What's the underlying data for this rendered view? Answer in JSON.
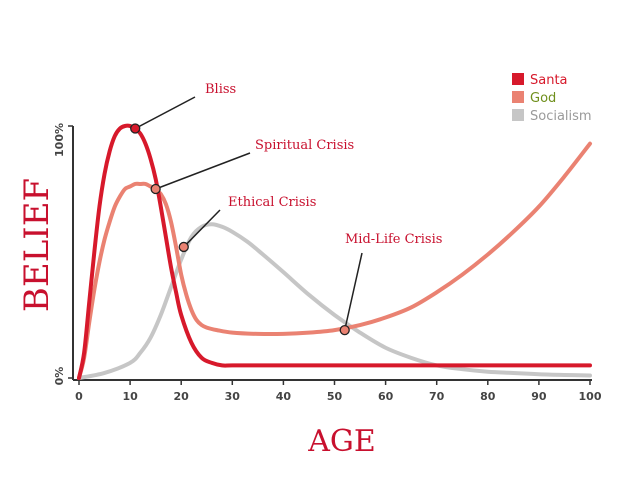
{
  "chart_data": {
    "type": "line",
    "title": "",
    "xlabel": "AGE",
    "ylabel": "BELIEF",
    "xlim": [
      0,
      100
    ],
    "ylim": [
      0,
      100
    ],
    "x_ticks": [
      0,
      10,
      20,
      30,
      40,
      50,
      60,
      70,
      80,
      90,
      100
    ],
    "y_ticks": [
      {
        "value": 0,
        "label": "0%"
      },
      {
        "value": 100,
        "label": "100%"
      }
    ],
    "legend_position": "top-right",
    "series": [
      {
        "name": "Santa",
        "color": "#d7192b",
        "x": [
          0,
          1,
          2,
          3,
          4,
          5,
          6,
          7,
          8,
          9,
          10,
          11,
          12,
          13,
          14,
          15,
          16,
          17,
          18,
          19,
          20,
          22,
          24,
          26,
          28,
          30,
          35,
          40,
          50,
          60,
          70,
          80,
          90,
          100
        ],
        "y": [
          0,
          10,
          30,
          50,
          68,
          81,
          90,
          96,
          99,
          100,
          100,
          99,
          97,
          93,
          87,
          79,
          68,
          56,
          44,
          34,
          25,
          14,
          8,
          6,
          5,
          5,
          5,
          5,
          5,
          5,
          5,
          5,
          5,
          5
        ]
      },
      {
        "name": "God",
        "color": "#ea8272",
        "x": [
          0,
          1,
          2,
          3,
          4,
          5,
          6,
          7,
          8,
          9,
          10,
          11,
          12,
          13,
          14,
          15,
          16,
          17,
          18,
          19,
          20,
          21,
          22,
          23,
          24,
          25,
          27,
          30,
          35,
          40,
          45,
          50,
          55,
          60,
          65,
          70,
          75,
          80,
          85,
          90,
          95,
          100
        ],
        "y": [
          0,
          8,
          22,
          35,
          46,
          55,
          62,
          68,
          72,
          75,
          76,
          77,
          77,
          77,
          76,
          75,
          73,
          69,
          62,
          52,
          41,
          33,
          27,
          23,
          21,
          20,
          19,
          18,
          17.5,
          17.5,
          18,
          19,
          21,
          24,
          28,
          34,
          41,
          49,
          58,
          68,
          80,
          93
        ]
      },
      {
        "name": "Socialism",
        "color": "#c6c6c6",
        "x": [
          0,
          5,
          10,
          12,
          14,
          16,
          18,
          20,
          22,
          24,
          26,
          28,
          30,
          33,
          36,
          40,
          45,
          50,
          55,
          60,
          65,
          70,
          75,
          80,
          85,
          90,
          95,
          100
        ],
        "y": [
          0,
          2,
          6,
          10,
          16,
          25,
          36,
          47,
          56,
          60,
          61,
          60,
          58,
          54,
          49,
          42,
          33,
          25,
          18,
          12,
          8,
          5,
          3.5,
          2.5,
          2,
          1.5,
          1.2,
          1
        ]
      }
    ],
    "annotations": [
      {
        "text": "Bliss",
        "series": "Santa",
        "x": 11,
        "y": 99
      },
      {
        "text": "Spiritual Crisis",
        "series": "God",
        "x": 15,
        "y": 75
      },
      {
        "text": "Ethical Crisis",
        "series": "God",
        "x": 20.5,
        "y": 52
      },
      {
        "text": "Mid-Life Crisis",
        "series": "God",
        "x": 52,
        "y": 19
      }
    ]
  }
}
